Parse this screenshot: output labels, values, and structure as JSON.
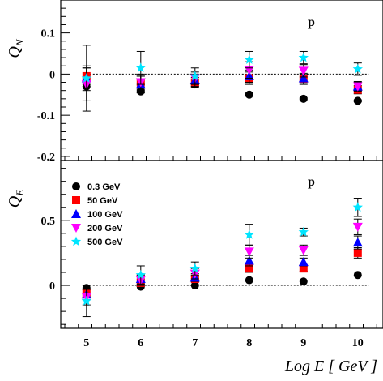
{
  "chart_data": [
    {
      "type": "scatter",
      "panel": "top",
      "ylabel_main": "Q",
      "ylabel_sub": "N",
      "annotation": "p",
      "ylim": [
        -0.21,
        0.18
      ],
      "yticks": [
        -0.2,
        -0.1,
        0,
        0.1
      ],
      "ytick_labels": [
        "-0.2",
        "-0.1",
        "0",
        "0.1"
      ],
      "x": [
        5,
        6,
        7,
        8,
        9,
        10
      ],
      "series": [
        {
          "name": "0.3 GeV",
          "marker": "circle",
          "color": "#000000",
          "values": [
            -0.03,
            -0.042,
            -0.025,
            -0.05,
            -0.06,
            -0.065
          ],
          "errors": [
            0.0,
            0.004,
            0.004,
            0.004,
            0.002,
            0.002
          ]
        },
        {
          "name": "50 GeV",
          "marker": "square",
          "color": "#ff0000",
          "values": [
            -0.005,
            -0.02,
            -0.02,
            -0.01,
            -0.013,
            -0.038
          ],
          "errors": [
            0.02,
            0.015,
            0.012,
            0.015,
            0.012,
            0.01
          ]
        },
        {
          "name": "100 GeV",
          "marker": "triangle-up",
          "color": "#0000ff",
          "values": [
            -0.01,
            -0.025,
            -0.015,
            -0.005,
            -0.01,
            -0.03
          ],
          "errors": [
            0.03,
            0.02,
            0.015,
            0.015,
            0.012,
            0.01
          ]
        },
        {
          "name": "200 GeV",
          "marker": "triangle-down",
          "color": "#ff00ff",
          "values": [
            -0.025,
            -0.02,
            -0.01,
            0.01,
            0.008,
            -0.03
          ],
          "errors": [
            0.04,
            0.02,
            0.015,
            0.02,
            0.015,
            0.012
          ]
        },
        {
          "name": "500 GeV",
          "marker": "star",
          "color": "#00e5ff",
          "values": [
            -0.01,
            0.015,
            -0.005,
            0.035,
            0.04,
            0.012
          ],
          "errors": [
            0.08,
            0.04,
            0.02,
            0.02,
            0.015,
            0.015
          ]
        }
      ]
    },
    {
      "type": "scatter",
      "panel": "bottom",
      "ylabel_main": "Q",
      "ylabel_sub": "E",
      "annotation": "p",
      "xlabel": "Log E [ GeV ]",
      "ylim": [
        -0.33,
        0.96
      ],
      "yticks": [
        0,
        0.5
      ],
      "ytick_labels": [
        "0",
        "0.5"
      ],
      "xticks": [
        5,
        6,
        7,
        8,
        9,
        10
      ],
      "xtick_labels": [
        "5",
        "6",
        "7",
        "8",
        "9",
        "10"
      ],
      "x": [
        5,
        6,
        7,
        8,
        9,
        10
      ],
      "legend_position": "top-left",
      "series": [
        {
          "name": "0.3 GeV",
          "marker": "circle",
          "color": "#000000",
          "values": [
            -0.02,
            -0.01,
            0.0,
            0.04,
            0.03,
            0.08
          ],
          "errors": [
            0.0,
            0.0,
            0.0,
            0.0,
            0.0,
            0.0
          ]
        },
        {
          "name": "50 GeV",
          "marker": "square",
          "color": "#ff0000",
          "values": [
            -0.06,
            0.02,
            0.05,
            0.13,
            0.13,
            0.25
          ],
          "errors": [
            0.03,
            0.03,
            0.02,
            0.03,
            0.02,
            0.04
          ]
        },
        {
          "name": "100 GeV",
          "marker": "triangle-up",
          "color": "#0000ff",
          "values": [
            -0.07,
            0.05,
            0.06,
            0.19,
            0.18,
            0.33
          ],
          "errors": [
            0.04,
            0.03,
            0.03,
            0.04,
            0.03,
            0.05
          ]
        },
        {
          "name": "200 GeV",
          "marker": "triangle-down",
          "color": "#ff00ff",
          "values": [
            -0.09,
            0.04,
            0.09,
            0.26,
            0.27,
            0.45
          ],
          "errors": [
            0.06,
            0.04,
            0.04,
            0.05,
            0.04,
            0.06
          ]
        },
        {
          "name": "500 GeV",
          "marker": "star",
          "color": "#00e5ff",
          "values": [
            -0.12,
            0.08,
            0.13,
            0.39,
            0.41,
            0.6
          ],
          "errors": [
            0.12,
            0.07,
            0.05,
            0.08,
            0.03,
            0.07
          ]
        }
      ]
    }
  ]
}
